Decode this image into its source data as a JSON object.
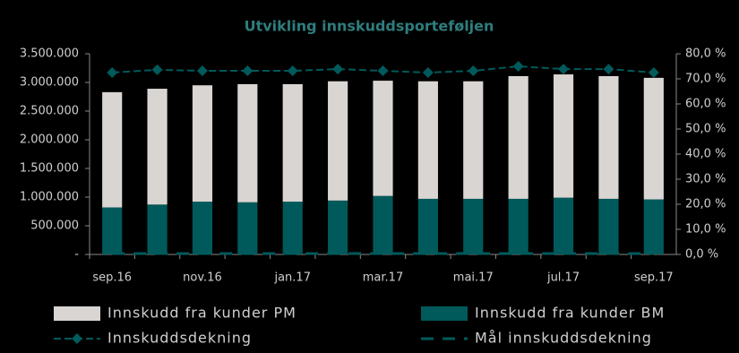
{
  "chart_data": {
    "type": "bar-line",
    "title": "Utvikling innskuddsporteføljen",
    "categories": [
      "sep.16",
      null,
      "nov.16",
      null,
      "jan.17",
      null,
      "mar.17",
      null,
      "mai.17",
      null,
      "jul.17",
      null,
      "sep.17"
    ],
    "series": [
      {
        "name": "Innskudd fra kunder PM",
        "type": "bar",
        "color": "#d9d5d2",
        "values": [
          2010000,
          2020000,
          2030000,
          2060000,
          2050000,
          2080000,
          2010000,
          2050000,
          2050000,
          2140000,
          2150000,
          2140000,
          2120000
        ]
      },
      {
        "name": "Innskudd fra kunder BM",
        "type": "bar",
        "color": "#005a5b",
        "values": [
          820000,
          870000,
          920000,
          910000,
          920000,
          940000,
          1020000,
          970000,
          970000,
          970000,
          990000,
          970000,
          960000
        ]
      },
      {
        "name": "Innskuddsdekning",
        "type": "line",
        "axis": "y2",
        "color": "#005a5b",
        "values": [
          72.5,
          73.6,
          73.2,
          73.2,
          73.2,
          73.9,
          73.2,
          72.5,
          73.2,
          75.0,
          73.9,
          73.9,
          72.5
        ]
      },
      {
        "name": "Mål innskuddsdekning",
        "type": "dashed",
        "axis": "y2",
        "color": "#005a5b",
        "values": [
          0,
          0,
          0,
          0,
          0,
          0,
          0,
          0,
          0,
          0,
          0,
          0,
          0
        ]
      }
    ],
    "stacked": true,
    "ylim": [
      0,
      3500000
    ],
    "yticks": [
      {
        "value": 0,
        "label": "-"
      },
      {
        "value": 500000,
        "label": "500.000"
      },
      {
        "value": 1000000,
        "label": "1.000.000"
      },
      {
        "value": 1500000,
        "label": "1.500.000"
      },
      {
        "value": 2000000,
        "label": "2.000.000"
      },
      {
        "value": 2500000,
        "label": "2.500.000"
      },
      {
        "value": 3000000,
        "label": "3.000.000"
      },
      {
        "value": 3500000,
        "label": "3.500.000"
      }
    ],
    "y2lim": [
      0,
      80
    ],
    "y2ticks": [
      {
        "value": 0,
        "label": "0,0 %"
      },
      {
        "value": 10,
        "label": "10,0 %"
      },
      {
        "value": 20,
        "label": "20,0 %"
      },
      {
        "value": 30,
        "label": "30,0 %"
      },
      {
        "value": 40,
        "label": "40,0 %"
      },
      {
        "value": 50,
        "label": "50,0 %"
      },
      {
        "value": 60,
        "label": "60,0 %"
      },
      {
        "value": 70,
        "label": "70,0 %"
      },
      {
        "value": 80,
        "label": "80,0 %"
      }
    ],
    "legend": "bottom"
  }
}
